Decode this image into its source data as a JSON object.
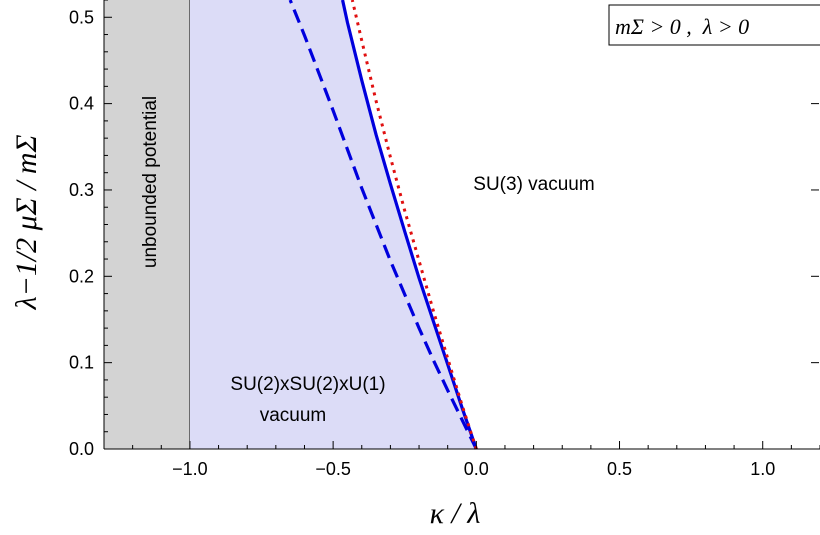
{
  "chart_data": {
    "type": "line",
    "xlabel": "κ / λ",
    "ylabel": "λ−1/2 μΣ / mΣ",
    "xlim": [
      -1.3,
      1.2
    ],
    "ylim": [
      0,
      0.52
    ],
    "x_ticks": [
      -1.0,
      -0.5,
      0.0,
      0.5,
      1.0
    ],
    "x_tick_labels": [
      "−1.0",
      "−0.5",
      "0.0",
      "0.5",
      "1.0"
    ],
    "y_ticks": [
      0.0,
      0.1,
      0.2,
      0.3,
      0.4,
      0.5
    ],
    "y_tick_labels": [
      "0.0",
      "0.1",
      "0.2",
      "0.3",
      "0.4",
      "0.5"
    ],
    "grid": false,
    "legend_box": "mΣ > 0 ,  λ > 0",
    "regions": [
      {
        "label": "unbounded potential",
        "x_range": [
          -1.3,
          -1.0
        ],
        "color": "#d3d3d3"
      },
      {
        "label_lines": [
          "SU(2)xSU(2)xU(1)",
          "vacuum"
        ],
        "bounded_by": "solid",
        "color": "#dcdcf7"
      },
      {
        "label": "SU(3) vacuum"
      }
    ],
    "series": [
      {
        "style": "solid",
        "color": "#0000dd",
        "points": [
          [
            0.0,
            0.0
          ],
          [
            -0.05,
            0.048
          ],
          [
            -0.1,
            0.098
          ],
          [
            -0.15,
            0.148
          ],
          [
            -0.2,
            0.198
          ],
          [
            -0.25,
            0.252
          ],
          [
            -0.3,
            0.307
          ],
          [
            -0.35,
            0.364
          ],
          [
            -0.4,
            0.427
          ],
          [
            -0.45,
            0.494
          ],
          [
            -0.467,
            0.52
          ]
        ]
      },
      {
        "style": "dashed",
        "color": "#0000dd",
        "points": [
          [
            0.0,
            0.0
          ],
          [
            -0.05,
            0.034
          ],
          [
            -0.1,
            0.068
          ],
          [
            -0.15,
            0.103
          ],
          [
            -0.2,
            0.14
          ],
          [
            -0.3,
            0.218
          ],
          [
            -0.4,
            0.302
          ],
          [
            -0.5,
            0.392
          ],
          [
            -0.6,
            0.479
          ],
          [
            -0.65,
            0.52
          ]
        ]
      },
      {
        "style": "dotted",
        "color": "#e01010",
        "points": [
          [
            0.0,
            0.0
          ],
          [
            -0.05,
            0.051
          ],
          [
            -0.1,
            0.105
          ],
          [
            -0.15,
            0.16
          ],
          [
            -0.2,
            0.218
          ],
          [
            -0.25,
            0.276
          ],
          [
            -0.3,
            0.338
          ],
          [
            -0.35,
            0.403
          ],
          [
            -0.4,
            0.473
          ],
          [
            -0.433,
            0.52
          ]
        ]
      }
    ]
  }
}
